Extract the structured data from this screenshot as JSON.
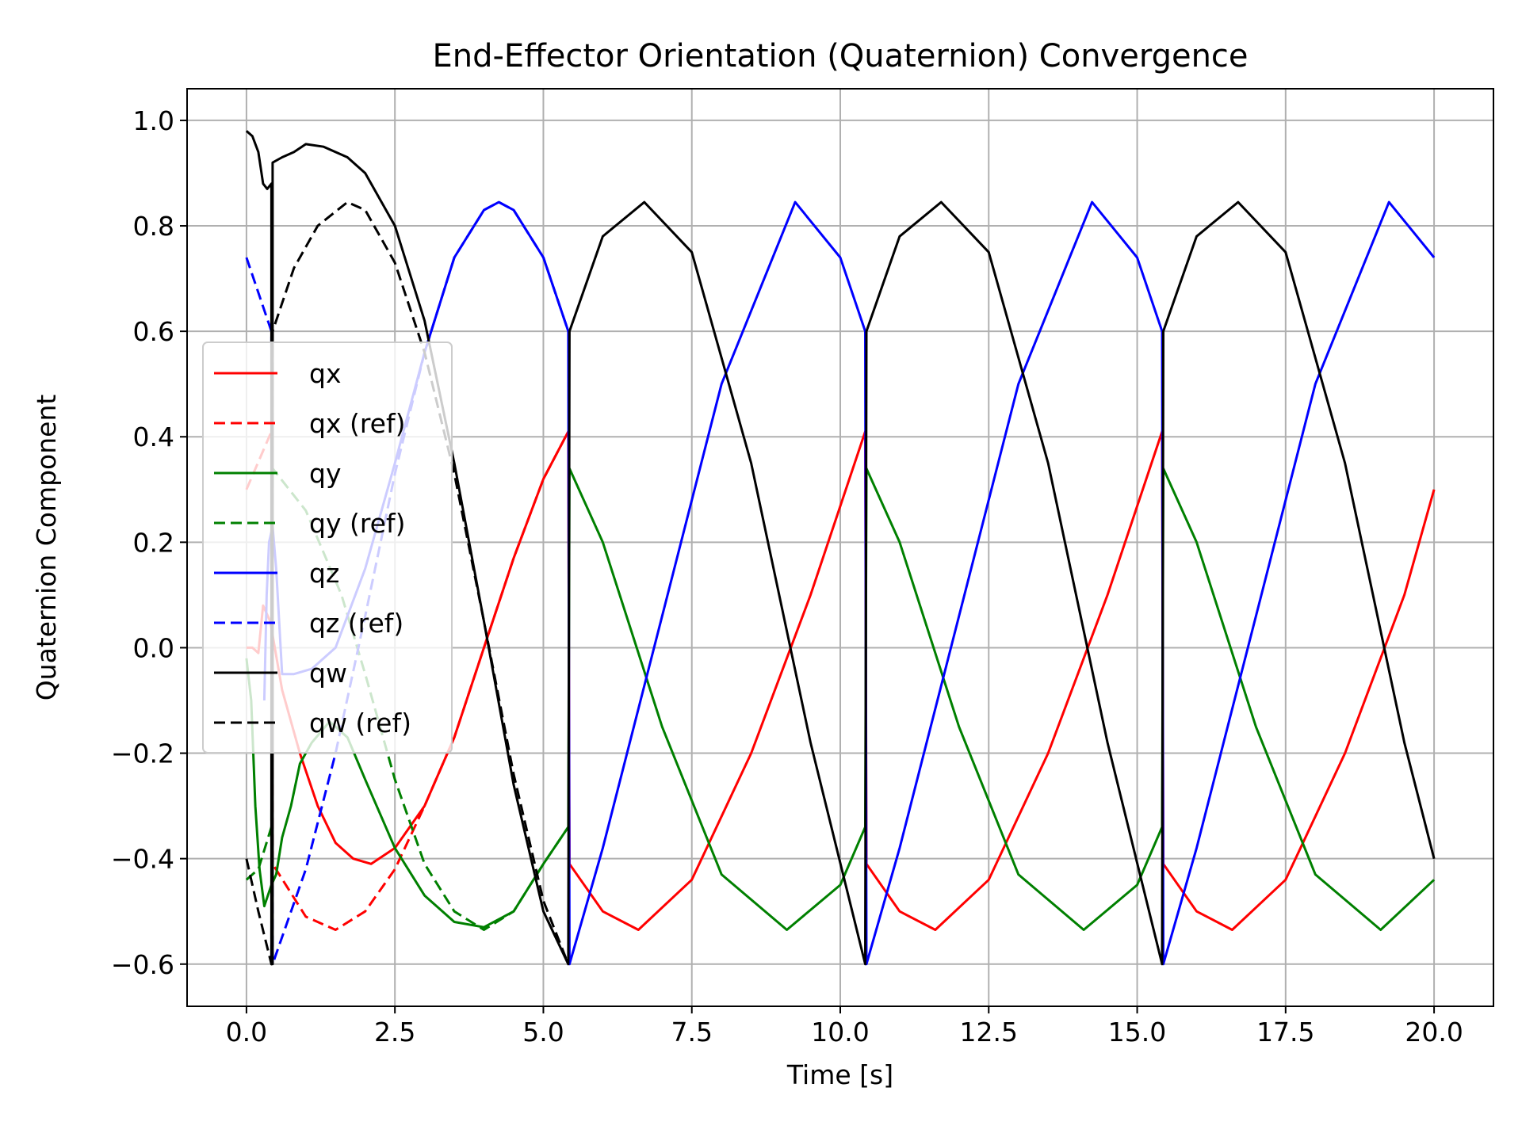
{
  "chart_data": {
    "type": "line",
    "title": "End-Effector Orientation (Quaternion) Convergence",
    "xlabel": "Time [s]",
    "ylabel": "Quaternion Component",
    "xlim": [
      -1.0,
      21.0
    ],
    "ylim": [
      -0.68,
      1.06
    ],
    "xticks": [
      0.0,
      2.5,
      5.0,
      7.5,
      10.0,
      12.5,
      15.0,
      17.5,
      20.0
    ],
    "xtick_labels": [
      "0.0",
      "2.5",
      "5.0",
      "7.5",
      "10.0",
      "12.5",
      "15.0",
      "17.5",
      "20.0"
    ],
    "yticks": [
      -0.6,
      -0.4,
      -0.2,
      0.0,
      0.2,
      0.4,
      0.6,
      0.8,
      1.0
    ],
    "ytick_labels": [
      "−0.6",
      "−0.4",
      "−0.2",
      "0.0",
      "0.2",
      "0.4",
      "0.6",
      "0.8",
      "1.0"
    ],
    "grid": true,
    "legend_position": "upper-left",
    "series": [
      {
        "name": "qx",
        "color": "#ff0000",
        "dash": "solid",
        "x": [
          0.0,
          0.1,
          0.2,
          0.28,
          0.4,
          0.6,
          0.9,
          1.2,
          1.5,
          1.8,
          2.1,
          2.5,
          3.0,
          3.5,
          4.0,
          4.5,
          5.0,
          5.42,
          5.44,
          6.0,
          6.6,
          7.5,
          8.5,
          9.5,
          10.42,
          10.44,
          11.0,
          11.6,
          12.5,
          13.5,
          14.5,
          15.42,
          15.44,
          16.0,
          16.6,
          17.5,
          18.5,
          19.5,
          20.0
        ],
        "y": [
          0.0,
          0.0,
          -0.01,
          0.08,
          0.05,
          -0.08,
          -0.2,
          -0.3,
          -0.37,
          -0.4,
          -0.41,
          -0.38,
          -0.3,
          -0.17,
          -0.0,
          0.17,
          0.32,
          0.41,
          -0.41,
          -0.5,
          -0.535,
          -0.44,
          -0.2,
          0.1,
          0.41,
          -0.41,
          -0.5,
          -0.535,
          -0.44,
          -0.2,
          0.1,
          0.41,
          -0.41,
          -0.5,
          -0.535,
          -0.44,
          -0.2,
          0.1,
          0.3
        ]
      },
      {
        "name": "qx (ref)",
        "color": "#ff0000",
        "dash": "dashed",
        "x": [
          0.0,
          0.42,
          0.44,
          1.0,
          1.5,
          2.0,
          2.5,
          3.0,
          3.5,
          4.0,
          4.5,
          5.0,
          5.42
        ],
        "y": [
          0.3,
          0.41,
          -0.41,
          -0.51,
          -0.535,
          -0.5,
          -0.42,
          -0.3,
          -0.17,
          -0.0,
          0.17,
          0.32,
          0.41
        ]
      },
      {
        "name": "qy",
        "color": "#008000",
        "dash": "solid",
        "x": [
          0.0,
          0.08,
          0.15,
          0.22,
          0.3,
          0.36,
          0.42,
          0.5,
          0.6,
          0.75,
          0.9,
          1.1,
          1.4,
          1.7,
          2.0,
          2.5,
          3.0,
          3.5,
          4.0,
          4.5,
          5.0,
          5.42,
          5.44,
          6.0,
          7.0,
          8.0,
          9.1,
          10.0,
          10.42,
          10.44,
          11.0,
          12.0,
          13.0,
          14.1,
          15.0,
          15.42,
          15.44,
          16.0,
          17.0,
          18.0,
          19.1,
          20.0
        ],
        "y": [
          -0.02,
          -0.1,
          -0.3,
          -0.42,
          -0.49,
          -0.47,
          -0.45,
          -0.43,
          -0.36,
          -0.3,
          -0.22,
          -0.18,
          -0.14,
          -0.17,
          -0.25,
          -0.38,
          -0.47,
          -0.52,
          -0.53,
          -0.5,
          -0.41,
          -0.34,
          0.34,
          0.2,
          -0.15,
          -0.43,
          -0.535,
          -0.45,
          -0.34,
          0.34,
          0.2,
          -0.15,
          -0.43,
          -0.535,
          -0.45,
          -0.34,
          0.34,
          0.2,
          -0.15,
          -0.43,
          -0.535,
          -0.44
        ]
      },
      {
        "name": "qy (ref)",
        "color": "#008000",
        "dash": "dashed",
        "x": [
          0.0,
          0.2,
          0.42,
          0.44,
          1.0,
          1.6,
          2.0,
          2.5,
          3.0,
          3.5,
          4.0,
          4.5,
          5.0,
          5.42
        ],
        "y": [
          -0.44,
          -0.42,
          -0.34,
          0.34,
          0.26,
          0.1,
          -0.05,
          -0.25,
          -0.41,
          -0.5,
          -0.535,
          -0.5,
          -0.41,
          -0.34
        ]
      },
      {
        "name": "qz",
        "color": "#0000ff",
        "dash": "solid",
        "x": [
          0.3,
          0.34,
          0.38,
          0.44,
          0.5,
          0.6,
          0.8,
          1.1,
          1.5,
          2.0,
          2.5,
          3.0,
          3.5,
          4.0,
          4.25,
          4.5,
          5.0,
          5.42,
          5.44,
          6.0,
          7.0,
          8.0,
          9.24,
          10.0,
          10.42,
          10.44,
          11.0,
          12.0,
          13.0,
          14.24,
          15.0,
          15.42,
          15.44,
          16.0,
          17.0,
          18.0,
          19.24,
          20.0
        ],
        "y": [
          -0.1,
          0.1,
          0.2,
          0.23,
          0.15,
          -0.05,
          -0.05,
          -0.04,
          0.0,
          0.15,
          0.35,
          0.56,
          0.74,
          0.83,
          0.845,
          0.83,
          0.74,
          0.6,
          -0.6,
          -0.38,
          0.06,
          0.5,
          0.845,
          0.74,
          0.6,
          -0.6,
          -0.38,
          0.06,
          0.5,
          0.845,
          0.74,
          0.6,
          -0.6,
          -0.38,
          0.06,
          0.5,
          0.845,
          0.74
        ]
      },
      {
        "name": "qz (ref)",
        "color": "#0000ff",
        "dash": "dashed",
        "x": [
          0.0,
          0.42,
          0.44,
          1.0,
          1.5,
          2.0,
          2.5,
          3.0,
          3.5,
          4.0,
          4.25,
          4.5,
          5.0,
          5.42
        ],
        "y": [
          0.74,
          0.6,
          -0.6,
          -0.42,
          -0.2,
          0.06,
          0.33,
          0.56,
          0.74,
          0.83,
          0.845,
          0.83,
          0.74,
          0.6
        ]
      },
      {
        "name": "qw",
        "color": "#000000",
        "dash": "solid",
        "x": [
          0.0,
          0.1,
          0.2,
          0.28,
          0.35,
          0.42,
          0.42,
          0.44,
          0.44,
          0.6,
          0.8,
          1.0,
          1.3,
          1.7,
          2.0,
          2.5,
          3.0,
          3.5,
          4.0,
          4.5,
          5.0,
          5.42,
          5.44,
          6.0,
          6.7,
          7.5,
          8.5,
          9.5,
          10.42,
          10.44,
          11.0,
          11.7,
          12.5,
          13.5,
          14.5,
          15.42,
          15.44,
          16.0,
          16.7,
          17.5,
          18.5,
          19.5,
          20.0
        ],
        "y": [
          0.98,
          0.97,
          0.94,
          0.88,
          0.87,
          0.88,
          -0.6,
          -0.6,
          0.92,
          0.93,
          0.94,
          0.955,
          0.95,
          0.93,
          0.9,
          0.8,
          0.62,
          0.35,
          0.05,
          -0.26,
          -0.5,
          -0.6,
          0.6,
          0.78,
          0.845,
          0.75,
          0.35,
          -0.18,
          -0.6,
          0.6,
          0.78,
          0.845,
          0.75,
          0.35,
          -0.18,
          -0.6,
          0.6,
          0.78,
          0.845,
          0.75,
          0.35,
          -0.18,
          -0.4
        ]
      },
      {
        "name": "qw (ref)",
        "color": "#000000",
        "dash": "dashed",
        "x": [
          0.0,
          0.2,
          0.42,
          0.44,
          0.8,
          1.2,
          1.7,
          2.0,
          2.5,
          3.0,
          3.5,
          4.0,
          4.5,
          5.0,
          5.42
        ],
        "y": [
          -0.4,
          -0.5,
          -0.6,
          0.6,
          0.72,
          0.8,
          0.845,
          0.83,
          0.73,
          0.56,
          0.33,
          0.05,
          -0.24,
          -0.48,
          -0.6
        ]
      }
    ]
  }
}
